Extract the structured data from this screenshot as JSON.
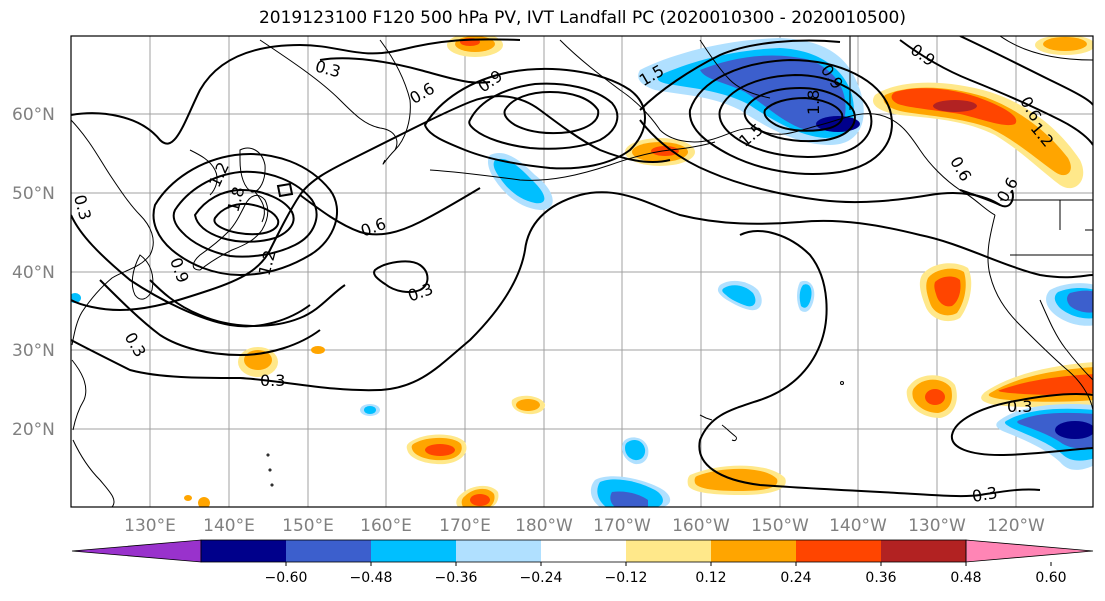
{
  "title": "2019123100 F120 500 hPa PV, IVT Landfall PC (2020010300 - 2020010500)",
  "map": {
    "lat_labels": [
      "60°N",
      "50°N",
      "40°N",
      "30°N",
      "20°N"
    ],
    "lon_labels": [
      "130°E",
      "140°E",
      "150°E",
      "160°E",
      "170°E",
      "180°W",
      "170°W",
      "160°W",
      "150°W",
      "140°W",
      "130°W",
      "120°W"
    ],
    "contour_labels": [
      "0.3",
      "0.6",
      "0.9",
      "1.2",
      "1.5",
      "1.8",
      "0.3",
      "0.6",
      "0.9",
      "1.2",
      "0.3",
      "0.9",
      "0.3",
      "0.6",
      "0.9",
      "1.2",
      "0.3",
      "0.6",
      "0.3",
      "0.6",
      "0.3",
      "1.5",
      "1.8"
    ]
  },
  "colorbar": {
    "ticks": [
      "−0.60",
      "−0.48",
      "−0.36",
      "−0.24",
      "−0.12",
      "0.12",
      "0.24",
      "0.36",
      "0.48",
      "0.60"
    ],
    "colors": [
      "#9932cc",
      "#00008b",
      "#3c5fcd",
      "#00bfff",
      "#b0e0ff",
      "#ffffff",
      "#ffe88a",
      "#ffa500",
      "#ff4500",
      "#b22222",
      "#ff85b5"
    ]
  }
}
